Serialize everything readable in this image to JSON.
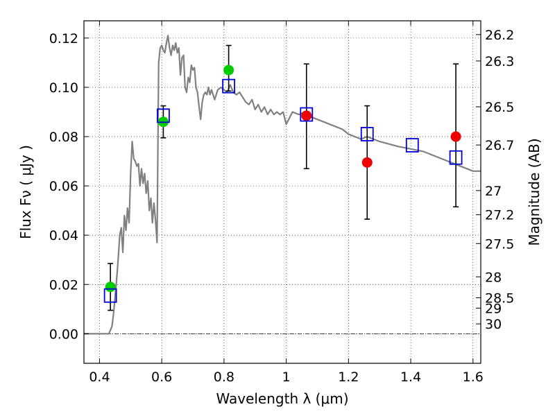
{
  "chart_data": {
    "type": "scatter",
    "xlabel": "Wavelength  λ (μm)",
    "ylabel": "Flux  Fν  ( μJy )",
    "y2label": "Magnitude (AB)",
    "xlim": [
      0.35,
      1.625
    ],
    "ylim": [
      -0.012,
      0.127
    ],
    "grid": true,
    "x_ticks": [
      0.4,
      0.6,
      0.8,
      1.0,
      1.2,
      1.4,
      1.6
    ],
    "x_tick_labels": [
      "0.4",
      "0.6",
      "0.8",
      "1",
      "1.2",
      "1.4",
      "1.6"
    ],
    "y_ticks": [
      0.0,
      0.02,
      0.04,
      0.06,
      0.08,
      0.1,
      0.12
    ],
    "y_tick_labels": [
      "0.00",
      "0.02",
      "0.04",
      "0.06",
      "0.08",
      "0.10",
      "0.12"
    ],
    "magnitude_ticks": [
      {
        "label": "26.2",
        "flux": 0.1214
      },
      {
        "label": "26.3",
        "flux": 0.1107
      },
      {
        "label": "26.5",
        "flux": 0.0921
      },
      {
        "label": "26.7",
        "flux": 0.0766
      },
      {
        "label": "27",
        "flux": 0.0581
      },
      {
        "label": "27.2",
        "flux": 0.0483
      },
      {
        "label": "27.5",
        "flux": 0.0366
      },
      {
        "label": "28",
        "flux": 0.0231
      },
      {
        "label": "28.5",
        "flux": 0.0146
      },
      {
        "label": "29",
        "flux": 0.0104
      },
      {
        "label": "30",
        "flux": 0.004
      }
    ],
    "series": [
      {
        "kind": "model_spectrum",
        "color": "#808080",
        "x": [
          0.35,
          0.4,
          0.43,
          0.44,
          0.445,
          0.45,
          0.455,
          0.46,
          0.465,
          0.47,
          0.475,
          0.48,
          0.485,
          0.49,
          0.495,
          0.5,
          0.505,
          0.51,
          0.515,
          0.52,
          0.525,
          0.53,
          0.535,
          0.54,
          0.545,
          0.55,
          0.555,
          0.56,
          0.565,
          0.57,
          0.575,
          0.58,
          0.585,
          0.59,
          0.595,
          0.6,
          0.605,
          0.61,
          0.615,
          0.62,
          0.625,
          0.63,
          0.635,
          0.64,
          0.645,
          0.65,
          0.655,
          0.66,
          0.665,
          0.67,
          0.675,
          0.68,
          0.685,
          0.69,
          0.695,
          0.7,
          0.705,
          0.71,
          0.715,
          0.72,
          0.725,
          0.73,
          0.735,
          0.74,
          0.745,
          0.75,
          0.755,
          0.76,
          0.77,
          0.78,
          0.79,
          0.8,
          0.81,
          0.82,
          0.83,
          0.84,
          0.85,
          0.86,
          0.87,
          0.88,
          0.89,
          0.9,
          0.91,
          0.92,
          0.93,
          0.94,
          0.95,
          0.96,
          0.97,
          0.98,
          0.99,
          1.0,
          1.02,
          1.04,
          1.06,
          1.08,
          1.1,
          1.12,
          1.14,
          1.16,
          1.18,
          1.2,
          1.22,
          1.24,
          1.26,
          1.28,
          1.3,
          1.33,
          1.36,
          1.4,
          1.44,
          1.48,
          1.52,
          1.56,
          1.6,
          1.625
        ],
        "y": [
          0.0,
          0.0,
          0.0,
          0.003,
          0.008,
          0.015,
          0.022,
          0.03,
          0.04,
          0.043,
          0.033,
          0.048,
          0.042,
          0.051,
          0.045,
          0.065,
          0.078,
          0.071,
          0.07,
          0.068,
          0.069,
          0.06,
          0.067,
          0.061,
          0.065,
          0.057,
          0.062,
          0.05,
          0.055,
          0.045,
          0.053,
          0.046,
          0.037,
          0.11,
          0.116,
          0.117,
          0.115,
          0.114,
          0.118,
          0.121,
          0.116,
          0.113,
          0.117,
          0.115,
          0.118,
          0.114,
          0.116,
          0.105,
          0.112,
          0.113,
          0.1,
          0.098,
          0.104,
          0.102,
          0.109,
          0.107,
          0.108,
          0.1,
          0.098,
          0.092,
          0.087,
          0.094,
          0.097,
          0.098,
          0.097,
          0.1,
          0.097,
          0.099,
          0.095,
          0.099,
          0.1,
          0.099,
          0.098,
          0.101,
          0.098,
          0.097,
          0.098,
          0.096,
          0.094,
          0.093,
          0.095,
          0.091,
          0.093,
          0.09,
          0.092,
          0.089,
          0.091,
          0.089,
          0.09,
          0.089,
          0.09,
          0.085,
          0.09,
          0.089,
          0.09,
          0.088,
          0.087,
          0.086,
          0.085,
          0.084,
          0.083,
          0.081,
          0.08,
          0.079,
          0.08,
          0.079,
          0.078,
          0.077,
          0.076,
          0.075,
          0.074,
          0.072,
          0.07,
          0.068,
          0.066,
          0.066
        ]
      },
      {
        "kind": "observed_green",
        "color": "#00cc00",
        "x": [
          0.435,
          0.605,
          0.815
        ],
        "y": [
          0.019,
          0.086,
          0.107
        ],
        "yerr_low": [
          0.0095,
          0.0795,
          0.0985
        ],
        "yerr_high": [
          0.0285,
          0.0925,
          0.117
        ]
      },
      {
        "kind": "observed_red",
        "color": "#ee0000",
        "x": [
          1.065,
          1.26,
          1.545
        ],
        "y": [
          0.0885,
          0.0695,
          0.08
        ],
        "yerr_low": [
          0.067,
          0.0465,
          0.0515
        ],
        "yerr_high": [
          0.1095,
          0.0925,
          0.1095
        ]
      },
      {
        "kind": "model_photometry",
        "color": "#0000dd",
        "x": [
          0.435,
          0.605,
          0.815,
          1.065,
          1.26,
          1.405,
          1.545
        ],
        "y": [
          0.0155,
          0.0885,
          0.1005,
          0.089,
          0.081,
          0.0765,
          0.0715
        ]
      }
    ]
  }
}
